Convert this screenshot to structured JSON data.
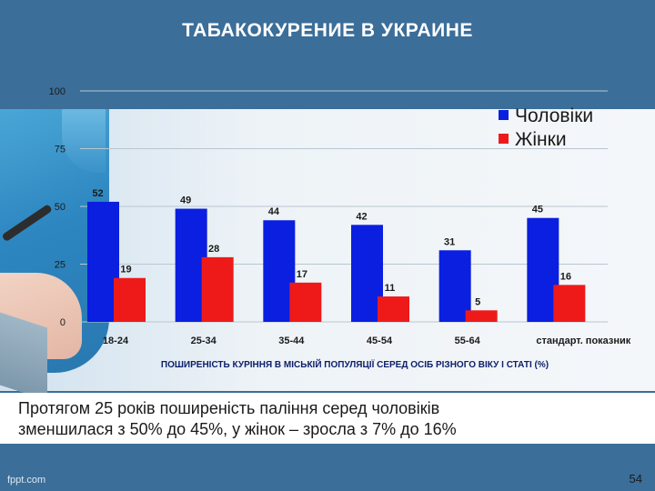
{
  "slide": {
    "title": "ТАБАКОКУРЕНИЕ В УКРАИНЕ",
    "caption_line1": "Протягом 25 років поширеність паління серед чоловіків",
    "caption_line2": "зменшилася з 50% до 45%, у жінок – зросла з 7% до 16%",
    "watermark": "fppt.com",
    "page_number": "54"
  },
  "chart_data": {
    "type": "bar",
    "subtitle": "ПОШИРЕНІСТЬ КУРІННЯ В МІСЬКІЙ ПОПУЛЯЦІЇ СЕРЕД ОСІБ РІЗНОГО ВІКУ І СТАТІ (%)",
    "categories": [
      "18-24",
      "25-34",
      "35-44",
      "45-54",
      "55-64",
      "стандарт. показник"
    ],
    "series": [
      {
        "name": "Чоловіки",
        "color": "#0a1fe0",
        "values": [
          52,
          49,
          44,
          42,
          31,
          45
        ]
      },
      {
        "name": "Жінки",
        "color": "#ee1a1a",
        "values": [
          19,
          28,
          17,
          11,
          5,
          16
        ]
      }
    ],
    "yticks": [
      "0",
      "25",
      "50",
      "75",
      "100"
    ],
    "ylim": [
      0,
      100
    ],
    "grid": true,
    "legend_position": "top-right"
  }
}
